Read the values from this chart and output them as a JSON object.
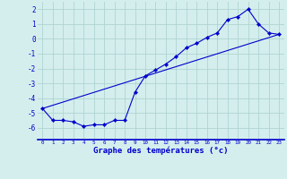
{
  "xlabel": "Graphe des températures (°c)",
  "background_color": "#d4eeed",
  "grid_color": "#aed4d2",
  "line_color": "#0000cc",
  "x_ticks": [
    0,
    1,
    2,
    3,
    4,
    5,
    6,
    7,
    8,
    9,
    10,
    11,
    12,
    13,
    14,
    15,
    16,
    17,
    18,
    19,
    20,
    21,
    22,
    23
  ],
  "y_ticks": [
    -6,
    -5,
    -4,
    -3,
    -2,
    -1,
    0,
    1,
    2
  ],
  "xlim": [
    -0.5,
    23.5
  ],
  "ylim": [
    -6.8,
    2.5
  ],
  "curve1_x": [
    0,
    1,
    2,
    3,
    4,
    5,
    6,
    7,
    8,
    9,
    10,
    11,
    12,
    13,
    14,
    15,
    16,
    17,
    18,
    19,
    20,
    21,
    22,
    23
  ],
  "curve1_y": [
    -4.7,
    -5.5,
    -5.5,
    -5.6,
    -5.9,
    -5.8,
    -5.8,
    -5.5,
    -5.5,
    -3.6,
    -2.5,
    -2.1,
    -1.7,
    -1.2,
    -0.6,
    -0.3,
    0.1,
    0.4,
    1.3,
    1.5,
    2.0,
    1.0,
    0.4,
    0.3
  ],
  "curve2_x": [
    0,
    23
  ],
  "curve2_y": [
    -4.7,
    0.3
  ],
  "xlabel_fontsize": 6.5,
  "xlabel_bold": true,
  "ytick_fontsize": 5.5,
  "xtick_fontsize": 4.2,
  "marker_size": 2.2,
  "linewidth": 0.8
}
